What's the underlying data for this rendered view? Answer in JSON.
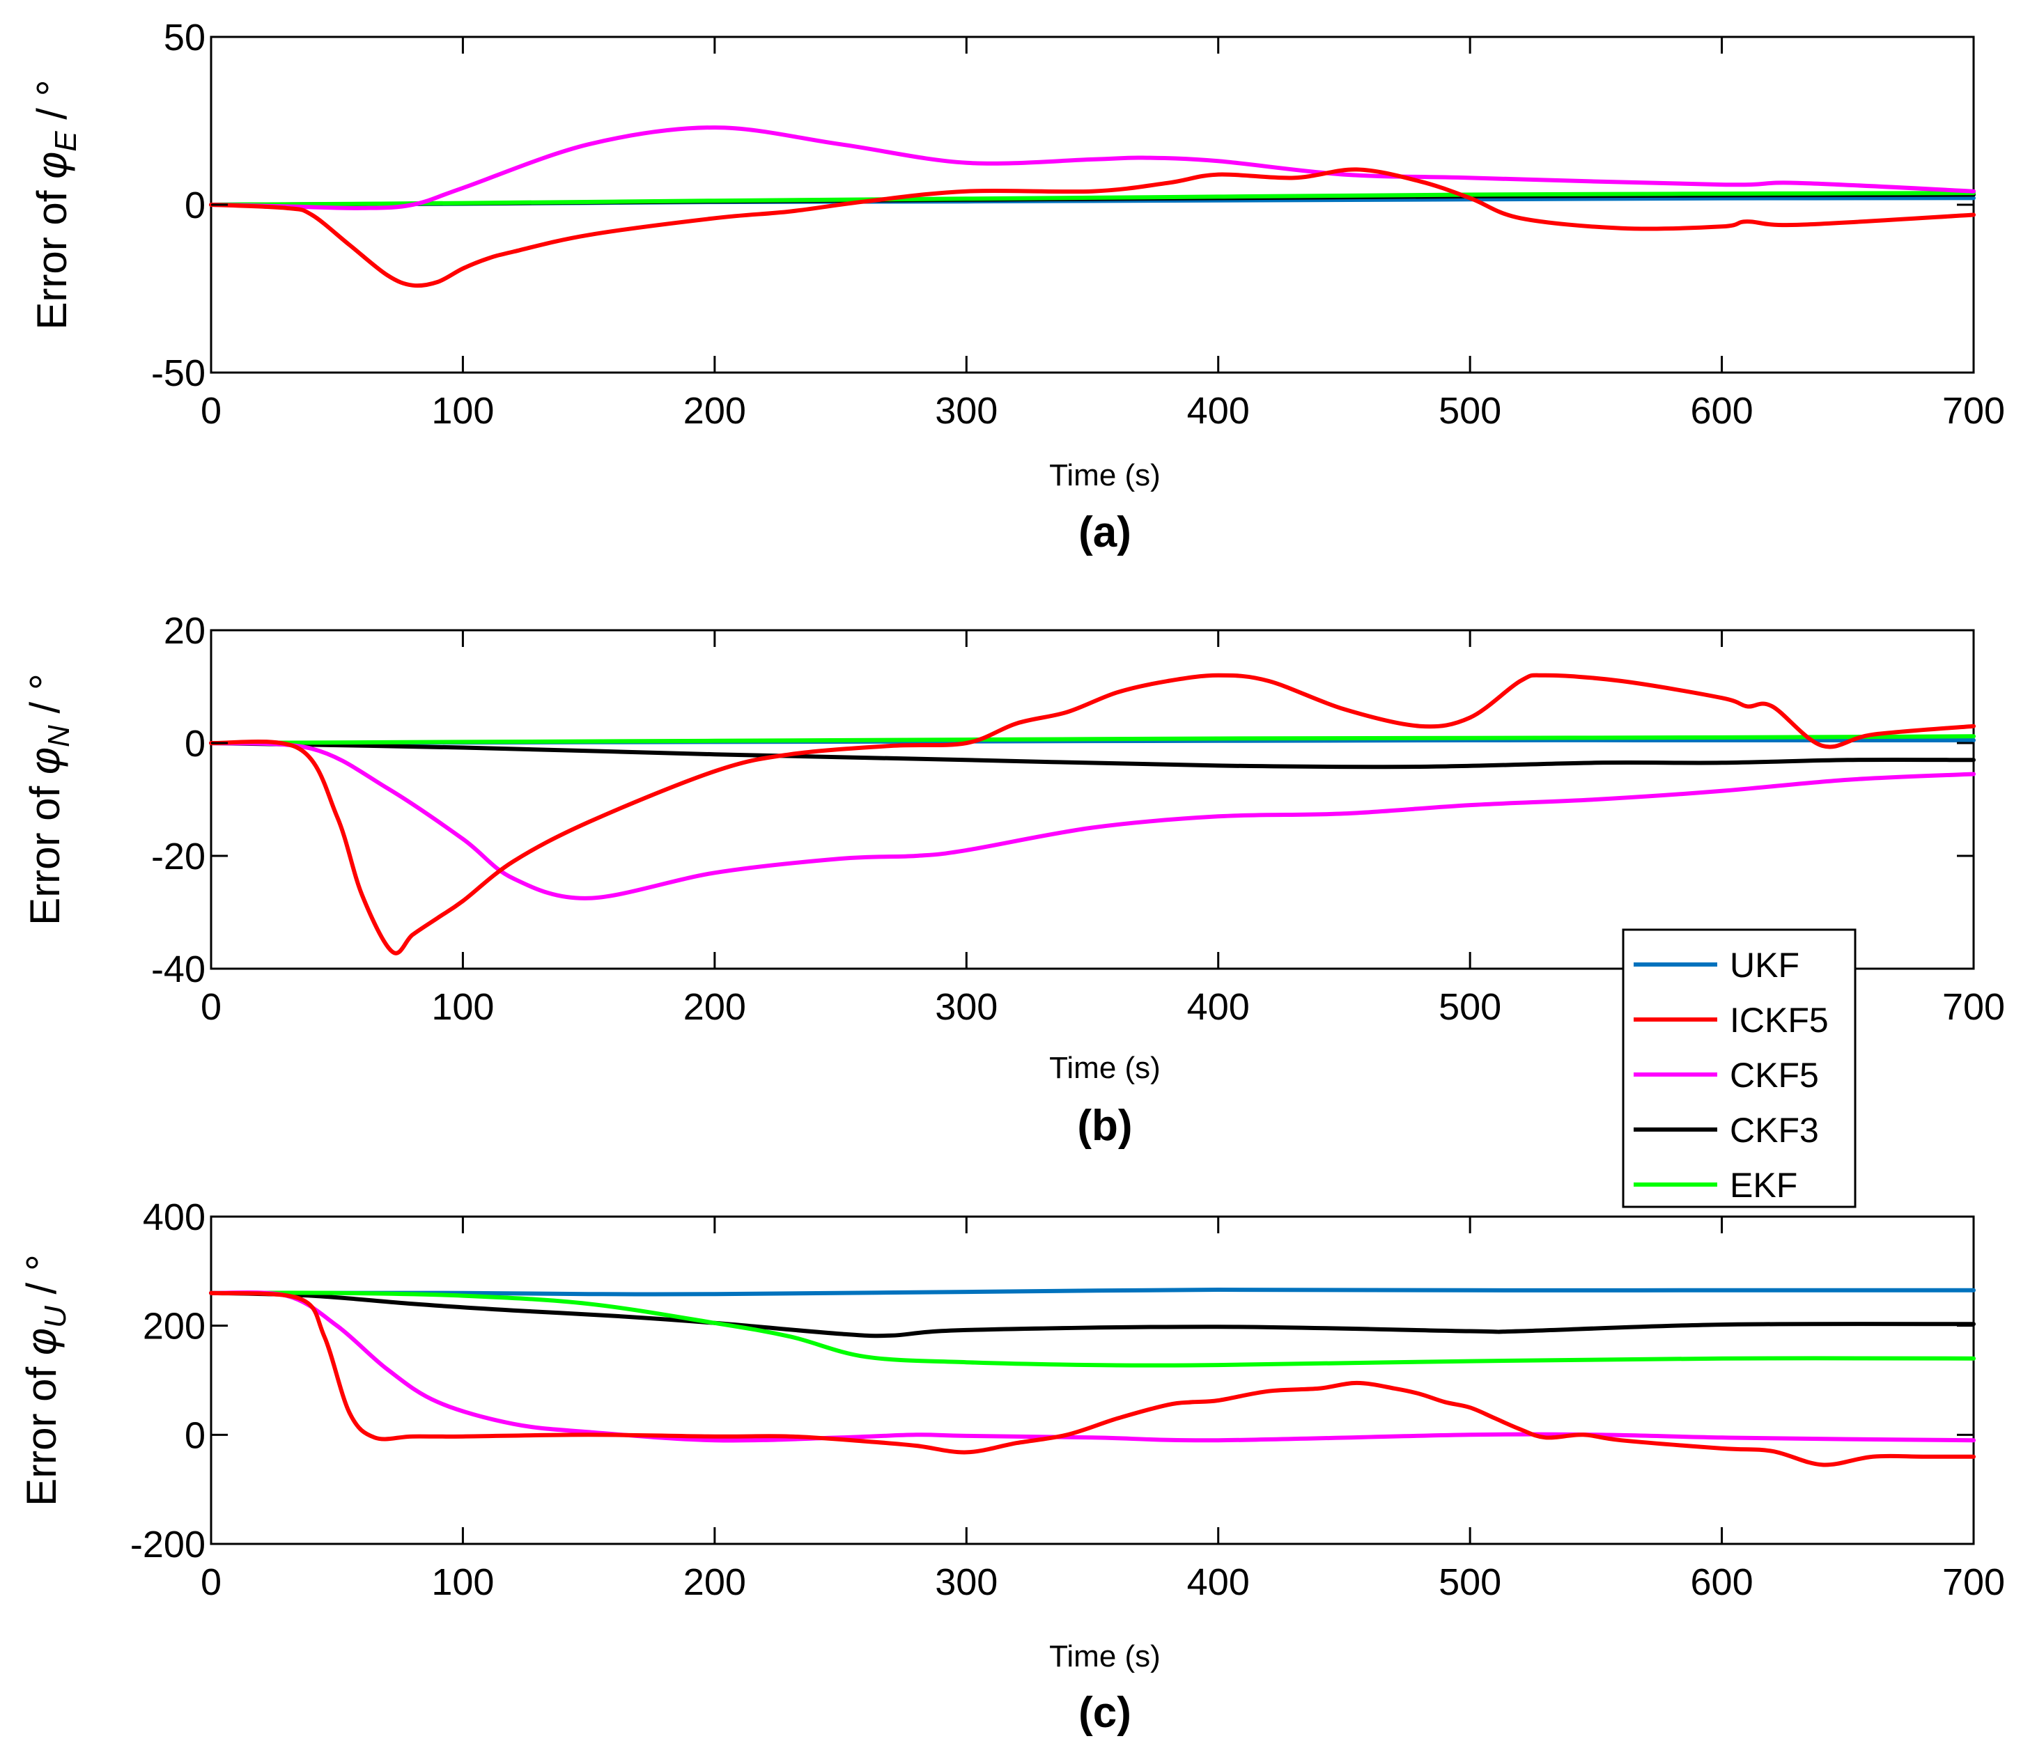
{
  "legend": [
    {
      "name": "UKF",
      "color": "#0072BD"
    },
    {
      "name": "ICKF5",
      "color": "#FF0000"
    },
    {
      "name": "CKF5",
      "color": "#FF00FF"
    },
    {
      "name": "CKF3",
      "color": "#000000"
    },
    {
      "name": "EKF",
      "color": "#00FF00"
    }
  ],
  "chart_data": [
    {
      "type": "line",
      "caption": "(a)",
      "xlabel": "Time (s)",
      "ylabel_prefix": "Error of ",
      "ylabel_symbol": "φ",
      "ylabel_sub": "E",
      "ylabel_unit": " / °",
      "xlim": [
        0,
        700
      ],
      "ylim": [
        -50,
        50
      ],
      "xticks": [
        0,
        100,
        200,
        300,
        400,
        500,
        600,
        700
      ],
      "yticks": [
        -50,
        0,
        50
      ],
      "series": [
        {
          "name": "UKF",
          "x": [
            0,
            100,
            200,
            300,
            400,
            500,
            600,
            700
          ],
          "y": [
            0,
            0.3,
            0.8,
            1,
            1.3,
            1.6,
            1.9,
            2
          ]
        },
        {
          "name": "CKF3",
          "x": [
            0,
            100,
            200,
            300,
            400,
            500,
            600,
            700
          ],
          "y": [
            0,
            0.4,
            1,
            1.5,
            2,
            2.5,
            2.8,
            3
          ]
        },
        {
          "name": "EKF",
          "x": [
            0,
            100,
            200,
            300,
            400,
            500,
            600,
            700
          ],
          "y": [
            0,
            0.5,
            1.2,
            1.8,
            2.4,
            3,
            3.3,
            3.5
          ]
        },
        {
          "name": "CKF5",
          "x": [
            0,
            30,
            60,
            80,
            100,
            150,
            200,
            250,
            300,
            350,
            370,
            400,
            450,
            500,
            600,
            630,
            700
          ],
          "y": [
            0,
            -0.5,
            -1,
            0,
            5,
            18,
            23,
            18,
            12.5,
            13.5,
            14,
            13,
            9,
            8,
            6,
            6.5,
            4
          ]
        },
        {
          "name": "ICKF5",
          "x": [
            0,
            30,
            40,
            55,
            70,
            80,
            90,
            100,
            110,
            120,
            150,
            200,
            230,
            260,
            300,
            350,
            380,
            400,
            430,
            455,
            480,
            500,
            520,
            560,
            600,
            610,
            630,
            700
          ],
          "y": [
            0,
            -1,
            -3,
            -12,
            -21,
            -24,
            -23,
            -19,
            -16,
            -14,
            -9,
            -4,
            -2,
            1,
            4,
            4,
            6.5,
            9,
            8,
            10.5,
            7,
            2,
            -4,
            -7,
            -6.5,
            -5,
            -6,
            -3
          ]
        }
      ]
    },
    {
      "type": "line",
      "caption": "(b)",
      "xlabel": "Time (s)",
      "ylabel_prefix": "Error of ",
      "ylabel_symbol": "φ",
      "ylabel_sub": "N",
      "ylabel_unit": " / °",
      "xlim": [
        0,
        700
      ],
      "ylim": [
        -40,
        20
      ],
      "xticks": [
        0,
        100,
        200,
        300,
        400,
        500,
        600,
        700
      ],
      "yticks": [
        -40,
        -20,
        0,
        20
      ],
      "series": [
        {
          "name": "UKF",
          "x": [
            0,
            100,
            200,
            300,
            400,
            500,
            600,
            700
          ],
          "y": [
            0,
            0.1,
            0.2,
            0.3,
            0.4,
            0.5,
            0.5,
            0.5
          ]
        },
        {
          "name": "CKF3",
          "x": [
            0,
            100,
            200,
            300,
            400,
            480,
            550,
            600,
            650,
            700
          ],
          "y": [
            0,
            -0.8,
            -2,
            -3,
            -4,
            -4.2,
            -3.5,
            -3.5,
            -3,
            -3
          ]
        },
        {
          "name": "EKF",
          "x": [
            0,
            100,
            200,
            300,
            400,
            500,
            600,
            700
          ],
          "y": [
            0,
            0.2,
            0.4,
            0.6,
            0.8,
            0.9,
            1,
            1.2
          ]
        },
        {
          "name": "CKF5",
          "x": [
            0,
            40,
            70,
            100,
            120,
            150,
            200,
            250,
            280,
            300,
            350,
            400,
            450,
            500,
            550,
            600,
            650,
            700
          ],
          "y": [
            0,
            -1,
            -8,
            -17,
            -24,
            -27.5,
            -23,
            -20.5,
            -20,
            -19,
            -15,
            -13,
            -12.5,
            -11,
            -10,
            -8.5,
            -6.5,
            -5.5
          ]
        },
        {
          "name": "ICKF5",
          "x": [
            0,
            35,
            50,
            60,
            72,
            80,
            90,
            100,
            120,
            150,
            200,
            230,
            270,
            300,
            320,
            340,
            360,
            380,
            400,
            420,
            450,
            480,
            500,
            520,
            530,
            560,
            600,
            610,
            620,
            640,
            660,
            700
          ],
          "y": [
            0,
            -1,
            -13,
            -27,
            -37,
            -34,
            -31,
            -28,
            -21,
            -14,
            -5,
            -2,
            -0.5,
            0,
            3.5,
            5.5,
            9,
            11,
            12,
            11,
            6,
            3,
            4.5,
            11,
            12,
            11,
            8,
            6.5,
            6.5,
            -0.5,
            1.5,
            3
          ]
        }
      ]
    },
    {
      "type": "line",
      "caption": "(c)",
      "xlabel": "Time (s)",
      "ylabel_prefix": "Error of ",
      "ylabel_symbol": "φ",
      "ylabel_sub": "U",
      "ylabel_unit": " / °",
      "xlim": [
        0,
        700
      ],
      "ylim": [
        -200,
        400
      ],
      "xticks": [
        0,
        100,
        200,
        300,
        400,
        500,
        600,
        700
      ],
      "yticks": [
        -200,
        0,
        200,
        400
      ],
      "series": [
        {
          "name": "UKF",
          "x": [
            0,
            100,
            150,
            200,
            300,
            400,
            500,
            600,
            700
          ],
          "y": [
            260,
            260,
            258,
            258,
            262,
            266,
            265,
            265,
            265
          ]
        },
        {
          "name": "CKF3",
          "x": [
            0,
            40,
            80,
            120,
            160,
            200,
            250,
            270,
            300,
            400,
            500,
            520,
            600,
            700
          ],
          "y": [
            260,
            255,
            240,
            228,
            218,
            205,
            185,
            182,
            192,
            198,
            190,
            190,
            202,
            203
          ]
        },
        {
          "name": "EKF",
          "x": [
            0,
            50,
            100,
            150,
            200,
            230,
            260,
            300,
            350,
            400,
            500,
            600,
            700
          ],
          "y": [
            260,
            260,
            255,
            240,
            205,
            180,
            143,
            133,
            128,
            128,
            135,
            140,
            140
          ]
        },
        {
          "name": "CKF5",
          "x": [
            0,
            30,
            50,
            70,
            90,
            120,
            150,
            200,
            250,
            280,
            300,
            350,
            400,
            500,
            550,
            600,
            650,
            700
          ],
          "y": [
            260,
            255,
            200,
            120,
            60,
            20,
            5,
            -10,
            -5,
            0,
            -2,
            -5,
            -10,
            0,
            0,
            -5,
            -8,
            -10
          ]
        },
        {
          "name": "ICKF5",
          "x": [
            0,
            35,
            45,
            55,
            65,
            80,
            100,
            150,
            200,
            230,
            260,
            280,
            300,
            320,
            340,
            360,
            380,
            390,
            400,
            420,
            440,
            455,
            470,
            480,
            490,
            500,
            510,
            520,
            530,
            545,
            560,
            600,
            620,
            640,
            660,
            680,
            700
          ],
          "y": [
            260,
            250,
            180,
            40,
            -5,
            -3,
            -3,
            0,
            -3,
            -3,
            -12,
            -20,
            -32,
            -15,
            0,
            30,
            55,
            60,
            63,
            80,
            85,
            95,
            85,
            75,
            60,
            50,
            30,
            10,
            -5,
            0,
            -10,
            -25,
            -30,
            -55,
            -40,
            -40,
            -40
          ]
        }
      ]
    }
  ]
}
